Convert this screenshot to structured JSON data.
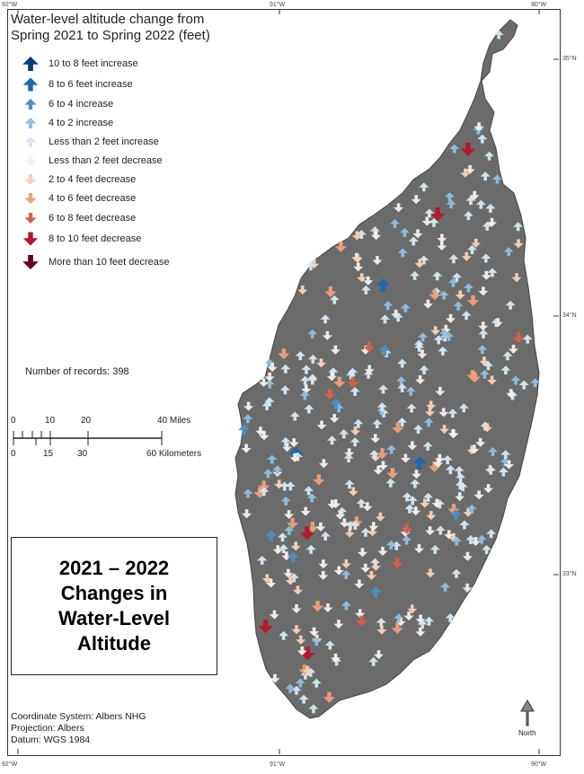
{
  "legend": {
    "title_line1": "Water-level altitude change from",
    "title_line2": "Spring 2021 to Spring 2022 (feet)",
    "items": [
      {
        "label": "10 to 8 feet increase",
        "color": "#0d3b7a",
        "direction": "up"
      },
      {
        "label": "8 to 6 feet increase",
        "color": "#2166ac",
        "direction": "up"
      },
      {
        "label": "6 to 4 increase",
        "color": "#4f8fc4",
        "direction": "up"
      },
      {
        "label": "4 to 2 increase",
        "color": "#8fc0df",
        "direction": "up"
      },
      {
        "label": "Less than 2 feet increase",
        "color": "#d6e9f4",
        "direction": "up"
      },
      {
        "label": "Less than 2 feet decrease",
        "color": "#f8f0ec",
        "direction": "down"
      },
      {
        "label": "2 to 4 feet decrease",
        "color": "#f7d3bd",
        "direction": "down"
      },
      {
        "label": "4 to 6 feet decrease",
        "color": "#eea07e",
        "direction": "down"
      },
      {
        "label": "6 to 8 feet decrease",
        "color": "#d6604d",
        "direction": "down"
      },
      {
        "label": "8 to 10 feet decrease",
        "color": "#b2182b",
        "direction": "down"
      },
      {
        "label": "More than 10 feet decrease",
        "color": "#67001f",
        "direction": "down"
      }
    ]
  },
  "records": "Number of records: 398",
  "scale": {
    "miles": [
      "0",
      "10",
      "20",
      "40 Miles"
    ],
    "km": [
      "0",
      "15",
      "30",
      "60 Kilometers"
    ]
  },
  "title_box": [
    "2021 – 2022",
    "Changes in",
    "Water-Level",
    "Altitude"
  ],
  "coord_info": [
    "Coordinate System: Albers NHG",
    "Projection: Albers",
    "Datum: WGS 1984"
  ],
  "north_label": "North",
  "graticule": {
    "top": [
      "92°W",
      "91°W",
      "90°W"
    ],
    "bottom": [
      "92°W",
      "91°W",
      "90°W"
    ],
    "right": [
      "35°N",
      "34°N",
      "33°N"
    ]
  },
  "colors": {
    "region": "#6b6b6b",
    "frame": "#333333"
  },
  "record_count": 398
}
